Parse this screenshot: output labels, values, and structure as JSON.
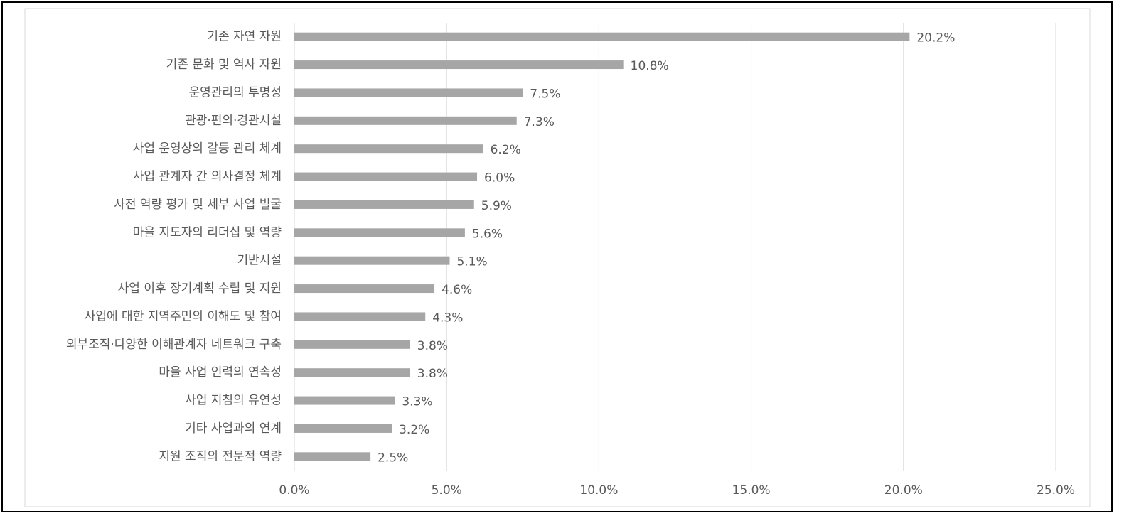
{
  "chart_data": {
    "type": "bar",
    "orientation": "horizontal",
    "categories": [
      "기존 자연 자원",
      "기존 문화 및 역사 자원",
      "운영관리의 투명성",
      "관광·편의·경관시설",
      "사업 운영상의 갈등 관리 체계",
      "사업 관계자 간 의사결정 체계",
      "사전 역량 평가 및 세부 사업 빌굴",
      "마을 지도자의 리더십 및 역량",
      "기반시설",
      "사업 이후 장기계획 수립 및 지원",
      "사업에 대한 지역주민의 이해도 및 참여",
      "외부조직·다양한 이해관계자 네트워크 구축",
      "마을 사업 인력의 연속성",
      "사업 지침의 유연성",
      "기타 사업과의 연계",
      "지원 조직의 전문적 역량"
    ],
    "values": [
      20.2,
      10.8,
      7.5,
      7.3,
      6.2,
      6.0,
      5.9,
      5.6,
      5.1,
      4.6,
      4.3,
      3.8,
      3.8,
      3.3,
      3.2,
      2.5
    ],
    "value_labels": [
      "20.2%",
      "10.8%",
      "7.5%",
      "7.3%",
      "6.2%",
      "6.0%",
      "5.9%",
      "5.6%",
      "5.1%",
      "4.6%",
      "4.3%",
      "3.8%",
      "3.8%",
      "3.3%",
      "3.2%",
      "2.5%"
    ],
    "color": "#a6a6a6",
    "xlim": [
      0,
      25
    ],
    "xticks": [
      {
        "value": 0,
        "label": "0.0%"
      },
      {
        "value": 5,
        "label": "5.0%"
      },
      {
        "value": 10,
        "label": "10.0%"
      },
      {
        "value": 15,
        "label": "15.0%"
      },
      {
        "value": 20,
        "label": "20.0%"
      },
      {
        "value": 25,
        "label": "25.0%"
      }
    ],
    "grid": true
  }
}
